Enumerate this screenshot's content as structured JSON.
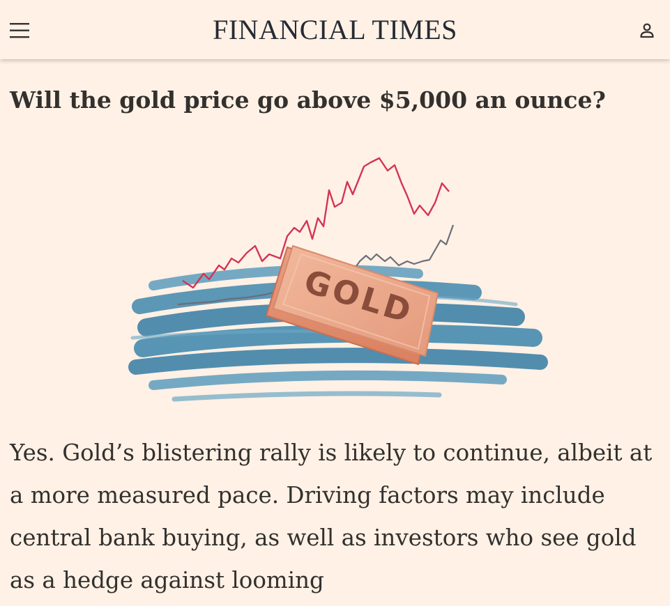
{
  "header": {
    "masthead": "FINANCIAL TIMES",
    "menu_icon": "hamburger-menu-icon",
    "account_icon": "user-account-icon"
  },
  "article": {
    "headline": "Will the gold price go above $5,000 an ounce?",
    "illustration": {
      "bar_text": "GOLD",
      "colors": {
        "brush_blue": "#4a8db0",
        "gold_bar": "#e9a688",
        "red_line": "#d43454",
        "grey_line": "#6b6e7a"
      }
    },
    "body": "Yes. Gold’s blistering rally is likely to continue, albeit at a more measured pace. Driving factors may include central bank buying, as well as investors who see gold as a hedge against looming"
  },
  "colors": {
    "page_background": "#fff1e5",
    "text": "#33302e"
  }
}
